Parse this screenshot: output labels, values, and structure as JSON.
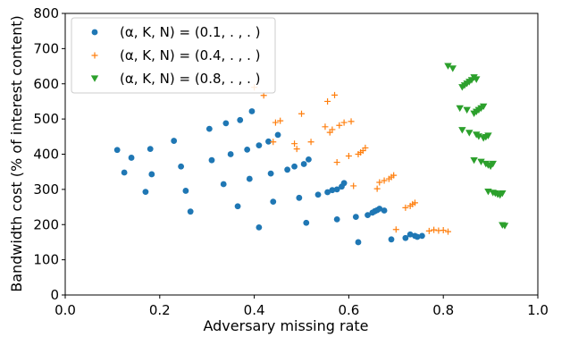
{
  "chart_data": {
    "type": "scatter",
    "title": "",
    "xlabel": "Adversary missing rate",
    "ylabel": "Bandwidth cost (% of interest content)",
    "xlim": [
      0.0,
      1.0
    ],
    "ylim": [
      0,
      800
    ],
    "xticks": [
      "0.0",
      "0.2",
      "0.4",
      "0.6",
      "0.8",
      "1.0"
    ],
    "yticks": [
      "0",
      "100",
      "200",
      "300",
      "400",
      "500",
      "600",
      "700",
      "800"
    ],
    "grid": false,
    "legend_position": "top-left",
    "series": [
      {
        "name": "(α, K, N) = (0.1, . , . )",
        "color": "#1f77b4",
        "marker": "circle",
        "points": [
          [
            0.11,
            412
          ],
          [
            0.125,
            348
          ],
          [
            0.14,
            390
          ],
          [
            0.17,
            293
          ],
          [
            0.18,
            415
          ],
          [
            0.183,
            343
          ],
          [
            0.23,
            438
          ],
          [
            0.245,
            365
          ],
          [
            0.255,
            296
          ],
          [
            0.265,
            237
          ],
          [
            0.305,
            472
          ],
          [
            0.31,
            383
          ],
          [
            0.335,
            315
          ],
          [
            0.34,
            488
          ],
          [
            0.35,
            400
          ],
          [
            0.365,
            252
          ],
          [
            0.37,
            497
          ],
          [
            0.385,
            413
          ],
          [
            0.39,
            330
          ],
          [
            0.395,
            522
          ],
          [
            0.41,
            192
          ],
          [
            0.41,
            425
          ],
          [
            0.43,
            436
          ],
          [
            0.435,
            345
          ],
          [
            0.44,
            265
          ],
          [
            0.45,
            455
          ],
          [
            0.47,
            356
          ],
          [
            0.485,
            365
          ],
          [
            0.495,
            276
          ],
          [
            0.505,
            372
          ],
          [
            0.51,
            205
          ],
          [
            0.515,
            385
          ],
          [
            0.535,
            285
          ],
          [
            0.555,
            292
          ],
          [
            0.565,
            298
          ],
          [
            0.575,
            215
          ],
          [
            0.575,
            300
          ],
          [
            0.585,
            308
          ],
          [
            0.59,
            318
          ],
          [
            0.615,
            222
          ],
          [
            0.62,
            150
          ],
          [
            0.64,
            227
          ],
          [
            0.65,
            234
          ],
          [
            0.655,
            238
          ],
          [
            0.66,
            241
          ],
          [
            0.665,
            245
          ],
          [
            0.675,
            240
          ],
          [
            0.69,
            158
          ],
          [
            0.72,
            162
          ],
          [
            0.73,
            172
          ],
          [
            0.74,
            168
          ],
          [
            0.745,
            165
          ],
          [
            0.755,
            168
          ]
        ]
      },
      {
        "name": "(α, K, N) = (0.4, . , . )",
        "color": "#ff7f0e",
        "marker": "plus",
        "points": [
          [
            0.4,
            590
          ],
          [
            0.42,
            567
          ],
          [
            0.44,
            435
          ],
          [
            0.445,
            490
          ],
          [
            0.455,
            495
          ],
          [
            0.485,
            430
          ],
          [
            0.49,
            415
          ],
          [
            0.5,
            515
          ],
          [
            0.52,
            435
          ],
          [
            0.55,
            478
          ],
          [
            0.555,
            550
          ],
          [
            0.56,
            462
          ],
          [
            0.565,
            470
          ],
          [
            0.57,
            568
          ],
          [
            0.575,
            377
          ],
          [
            0.58,
            482
          ],
          [
            0.59,
            490
          ],
          [
            0.6,
            395
          ],
          [
            0.605,
            493
          ],
          [
            0.61,
            310
          ],
          [
            0.62,
            400
          ],
          [
            0.625,
            405
          ],
          [
            0.63,
            410
          ],
          [
            0.635,
            418
          ],
          [
            0.66,
            302
          ],
          [
            0.665,
            320
          ],
          [
            0.675,
            325
          ],
          [
            0.685,
            330
          ],
          [
            0.69,
            335
          ],
          [
            0.695,
            340
          ],
          [
            0.7,
            186
          ],
          [
            0.72,
            248
          ],
          [
            0.73,
            253
          ],
          [
            0.735,
            258
          ],
          [
            0.74,
            262
          ],
          [
            0.77,
            182
          ],
          [
            0.78,
            185
          ],
          [
            0.79,
            183
          ],
          [
            0.8,
            184
          ],
          [
            0.81,
            180
          ]
        ]
      },
      {
        "name": "(α, K, N) = (0.8, . , . )",
        "color": "#2ca02c",
        "marker": "triangle-down",
        "points": [
          [
            0.81,
            650
          ],
          [
            0.82,
            643
          ],
          [
            0.84,
            590
          ],
          [
            0.845,
            595
          ],
          [
            0.85,
            600
          ],
          [
            0.855,
            605
          ],
          [
            0.86,
            610
          ],
          [
            0.865,
            618
          ],
          [
            0.87,
            612
          ],
          [
            0.835,
            530
          ],
          [
            0.85,
            525
          ],
          [
            0.865,
            515
          ],
          [
            0.87,
            520
          ],
          [
            0.875,
            525
          ],
          [
            0.88,
            530
          ],
          [
            0.885,
            535
          ],
          [
            0.84,
            468
          ],
          [
            0.855,
            460
          ],
          [
            0.87,
            455
          ],
          [
            0.875,
            450
          ],
          [
            0.885,
            445
          ],
          [
            0.89,
            448
          ],
          [
            0.895,
            452
          ],
          [
            0.865,
            382
          ],
          [
            0.88,
            378
          ],
          [
            0.89,
            372
          ],
          [
            0.895,
            368
          ],
          [
            0.9,
            365
          ],
          [
            0.905,
            372
          ],
          [
            0.895,
            293
          ],
          [
            0.905,
            290
          ],
          [
            0.91,
            288
          ],
          [
            0.915,
            285
          ],
          [
            0.92,
            283
          ],
          [
            0.925,
            288
          ],
          [
            0.925,
            198
          ],
          [
            0.93,
            196
          ]
        ]
      }
    ]
  }
}
